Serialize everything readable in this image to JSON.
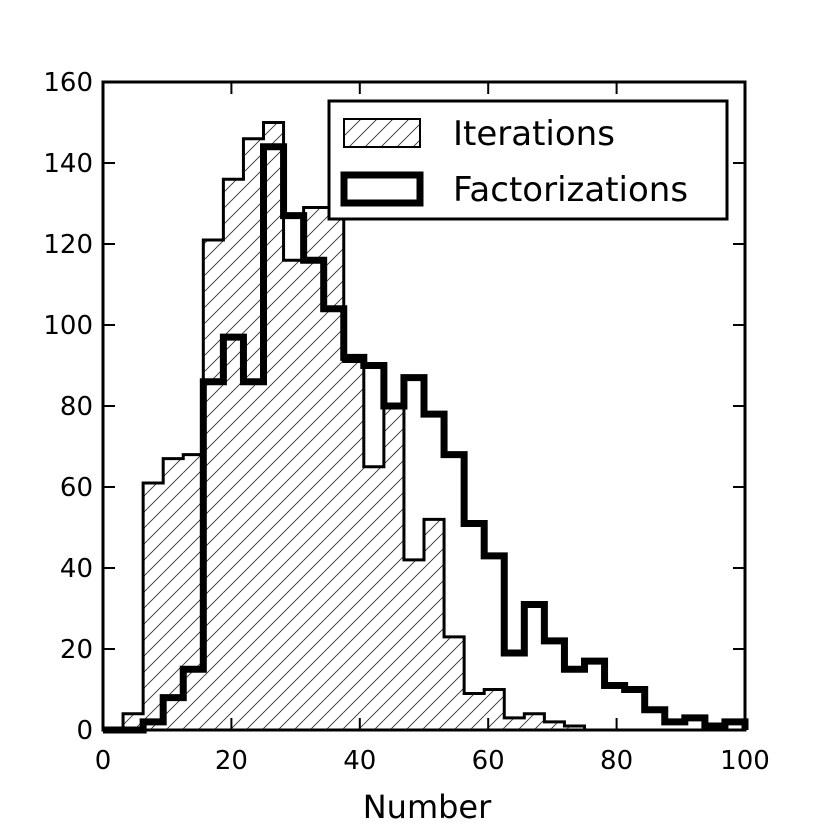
{
  "chart_data": {
    "type": "histogram",
    "title": "",
    "xlabel": "Number",
    "ylabel": "",
    "xlim": [
      0,
      100
    ],
    "ylim": [
      0,
      160
    ],
    "xticks": [
      0,
      20,
      40,
      60,
      80,
      100
    ],
    "yticks": [
      0,
      20,
      40,
      60,
      80,
      100,
      120,
      140,
      160
    ],
    "xtick_labels": [
      "0",
      "20",
      "40",
      "60",
      "80",
      "100"
    ],
    "ytick_labels": [
      "0",
      "20",
      "40",
      "60",
      "80",
      "100",
      "120",
      "140",
      "160"
    ],
    "bin_edges": [
      0,
      3.125,
      6.25,
      9.375,
      12.5,
      15.625,
      18.75,
      21.875,
      25,
      28.125,
      31.25,
      34.375,
      37.5,
      40.625,
      43.75,
      46.875,
      50,
      53.125,
      56.25,
      59.375,
      62.5,
      65.625,
      68.75,
      71.875,
      75,
      78.125,
      81.25,
      84.375,
      87.5,
      90.625,
      93.75,
      96.875,
      100
    ],
    "legend": {
      "position": "top-right",
      "entries": [
        "Iterations",
        "Factorizations"
      ]
    },
    "grid": false,
    "series": [
      {
        "name": "Iterations",
        "style": "hatched-fill",
        "values": [
          0,
          4,
          61,
          67,
          68,
          121,
          136,
          146,
          150,
          116,
          129,
          129,
          91,
          65,
          80,
          42,
          52,
          23,
          9,
          10,
          3,
          4,
          2,
          1,
          0,
          0,
          0,
          0,
          0,
          0,
          0,
          0
        ]
      },
      {
        "name": "Factorizations",
        "style": "thick-step",
        "values": [
          0,
          0,
          2,
          8,
          15,
          86,
          97,
          86,
          144,
          127,
          116,
          104,
          92,
          90,
          80,
          87,
          78,
          68,
          51,
          43,
          19,
          31,
          22,
          15,
          17,
          11,
          10,
          5,
          2,
          3,
          1,
          2
        ]
      }
    ]
  }
}
